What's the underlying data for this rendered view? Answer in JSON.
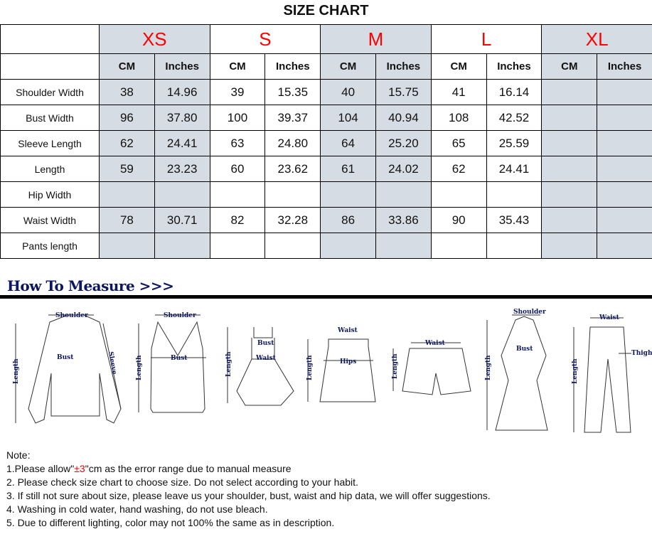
{
  "title": "SIZE CHART",
  "sizes": [
    "XS",
    "S",
    "M",
    "L",
    "XL"
  ],
  "units": [
    "CM",
    "Inches"
  ],
  "rows": [
    {
      "label": "Shoulder Width",
      "values": [
        "38",
        "14.96",
        "39",
        "15.35",
        "40",
        "15.75",
        "41",
        "16.14",
        "",
        ""
      ]
    },
    {
      "label": "Bust Width",
      "values": [
        "96",
        "37.80",
        "100",
        "39.37",
        "104",
        "40.94",
        "108",
        "42.52",
        "",
        ""
      ]
    },
    {
      "label": "Sleeve Length",
      "values": [
        "62",
        "24.41",
        "63",
        "24.80",
        "64",
        "25.20",
        "65",
        "25.59",
        "",
        ""
      ]
    },
    {
      "label": "Length",
      "values": [
        "59",
        "23.23",
        "60",
        "23.62",
        "61",
        "24.02",
        "62",
        "24.41",
        "",
        ""
      ]
    },
    {
      "label": "Hip Width",
      "values": [
        "",
        "",
        "",
        "",
        "",
        "",
        "",
        "",
        "",
        ""
      ]
    },
    {
      "label": "Waist Width",
      "values": [
        "78",
        "30.71",
        "82",
        "32.28",
        "86",
        "33.86",
        "90",
        "35.43",
        "",
        ""
      ]
    },
    {
      "label": "Pants length",
      "values": [
        "",
        "",
        "",
        "",
        "",
        "",
        "",
        "",
        "",
        ""
      ]
    }
  ],
  "colors": {
    "size_label": "#ff0000",
    "shaded_column": "#d6dce4",
    "measure_heading": "#0d1660"
  },
  "measure": {
    "heading": "How To Measure >>>",
    "labels": {
      "shoulder": "Shoulder",
      "bust": "Bust",
      "sleeve": "Sleeve",
      "length": "Length",
      "waist": "Waist",
      "hips": "Hips",
      "thigh": "Thigh"
    }
  },
  "notes": {
    "heading": "Note:",
    "line1_a": "1.Please allow\"",
    "line1_red": "±3",
    "line1_b": "\"cm as the error range due to manual measure",
    "line2": "2. Please check size chart to choose size. Do not select according to your habit.",
    "line3": "3. If still not sure about size, please leave us your shoulder, bust, waist and hip data, we will offer suggestions.",
    "line4": "4. Washing in cold water, hand washing, do not use bleach.",
    "line5": "5. Due to different lighting, color may not 100% the same as in description."
  }
}
